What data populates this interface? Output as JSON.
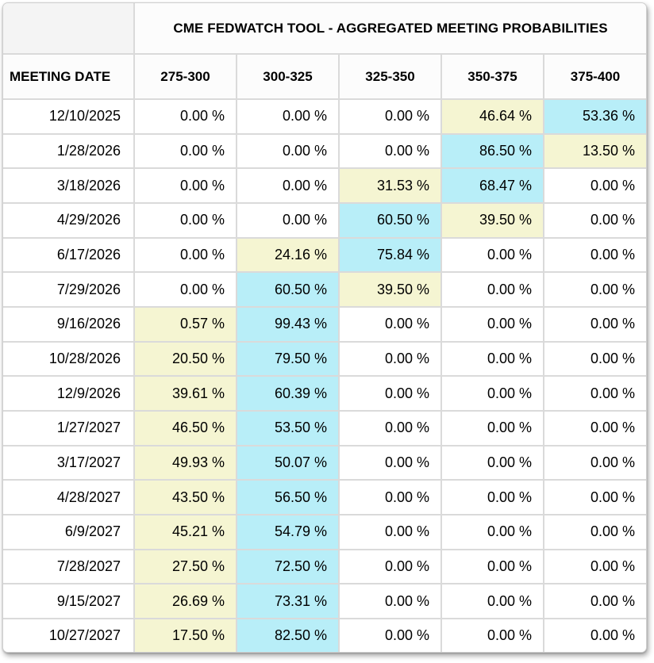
{
  "title": "CME FEDWATCH TOOL - AGGREGATED MEETING PROBABILITIES",
  "columns": [
    "MEETING DATE",
    "275-300",
    "300-325",
    "325-350",
    "350-375",
    "375-400"
  ],
  "colors": {
    "highlight_top": "#b8eef8",
    "highlight_second": "#f5f5d2",
    "grid_border": "#dadada",
    "header_bg": "#fcfcfc",
    "corner_bg": "#f4f4f4"
  },
  "rows": [
    {
      "date": "12/10/2025",
      "values": [
        "0.00 %",
        "0.00 %",
        "0.00 %",
        "46.64 %",
        "53.36 %"
      ],
      "hl": [
        "",
        "",
        "",
        "y",
        "c"
      ]
    },
    {
      "date": "1/28/2026",
      "values": [
        "0.00 %",
        "0.00 %",
        "0.00 %",
        "86.50 %",
        "13.50 %"
      ],
      "hl": [
        "",
        "",
        "",
        "c",
        "y"
      ]
    },
    {
      "date": "3/18/2026",
      "values": [
        "0.00 %",
        "0.00 %",
        "31.53 %",
        "68.47 %",
        "0.00 %"
      ],
      "hl": [
        "",
        "",
        "y",
        "c",
        ""
      ]
    },
    {
      "date": "4/29/2026",
      "values": [
        "0.00 %",
        "0.00 %",
        "60.50 %",
        "39.50 %",
        "0.00 %"
      ],
      "hl": [
        "",
        "",
        "c",
        "y",
        ""
      ]
    },
    {
      "date": "6/17/2026",
      "values": [
        "0.00 %",
        "24.16 %",
        "75.84 %",
        "0.00 %",
        "0.00 %"
      ],
      "hl": [
        "",
        "y",
        "c",
        "",
        ""
      ]
    },
    {
      "date": "7/29/2026",
      "values": [
        "0.00 %",
        "60.50 %",
        "39.50 %",
        "0.00 %",
        "0.00 %"
      ],
      "hl": [
        "",
        "c",
        "y",
        "",
        ""
      ]
    },
    {
      "date": "9/16/2026",
      "values": [
        "0.57 %",
        "99.43 %",
        "0.00 %",
        "0.00 %",
        "0.00 %"
      ],
      "hl": [
        "y",
        "c",
        "",
        "",
        ""
      ]
    },
    {
      "date": "10/28/2026",
      "values": [
        "20.50 %",
        "79.50 %",
        "0.00 %",
        "0.00 %",
        "0.00 %"
      ],
      "hl": [
        "y",
        "c",
        "",
        "",
        ""
      ]
    },
    {
      "date": "12/9/2026",
      "values": [
        "39.61 %",
        "60.39 %",
        "0.00 %",
        "0.00 %",
        "0.00 %"
      ],
      "hl": [
        "y",
        "c",
        "",
        "",
        ""
      ]
    },
    {
      "date": "1/27/2027",
      "values": [
        "46.50 %",
        "53.50 %",
        "0.00 %",
        "0.00 %",
        "0.00 %"
      ],
      "hl": [
        "y",
        "c",
        "",
        "",
        ""
      ]
    },
    {
      "date": "3/17/2027",
      "values": [
        "49.93 %",
        "50.07 %",
        "0.00 %",
        "0.00 %",
        "0.00 %"
      ],
      "hl": [
        "y",
        "c",
        "",
        "",
        ""
      ]
    },
    {
      "date": "4/28/2027",
      "values": [
        "43.50 %",
        "56.50 %",
        "0.00 %",
        "0.00 %",
        "0.00 %"
      ],
      "hl": [
        "y",
        "c",
        "",
        "",
        ""
      ]
    },
    {
      "date": "6/9/2027",
      "values": [
        "45.21 %",
        "54.79 %",
        "0.00 %",
        "0.00 %",
        "0.00 %"
      ],
      "hl": [
        "y",
        "c",
        "",
        "",
        ""
      ]
    },
    {
      "date": "7/28/2027",
      "values": [
        "27.50 %",
        "72.50 %",
        "0.00 %",
        "0.00 %",
        "0.00 %"
      ],
      "hl": [
        "y",
        "c",
        "",
        "",
        ""
      ]
    },
    {
      "date": "9/15/2027",
      "values": [
        "26.69 %",
        "73.31 %",
        "0.00 %",
        "0.00 %",
        "0.00 %"
      ],
      "hl": [
        "y",
        "c",
        "",
        "",
        ""
      ]
    },
    {
      "date": "10/27/2027",
      "values": [
        "17.50 %",
        "82.50 %",
        "0.00 %",
        "0.00 %",
        "0.00 %"
      ],
      "hl": [
        "y",
        "c",
        "",
        "",
        ""
      ]
    }
  ]
}
